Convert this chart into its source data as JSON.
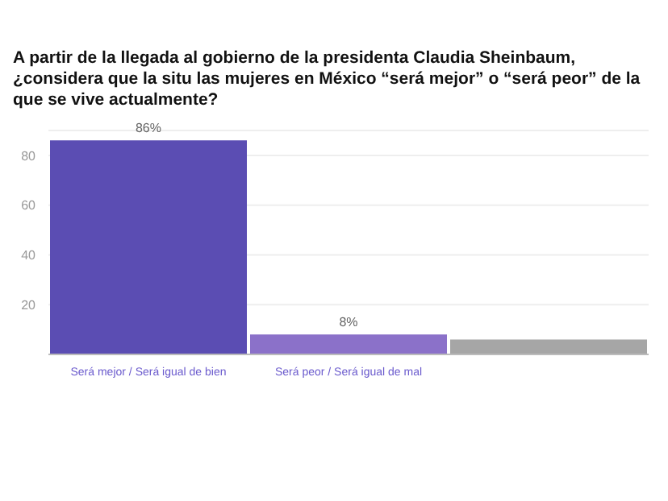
{
  "chart_data": {
    "type": "bar",
    "title": "A partir de la llegada al gobierno de la presidenta Claudia Sheinbaum, ¿considera que la situ las mujeres en México “será mejor” o “será peor” de la que se vive actualmente?",
    "categories": [
      "Será mejor / Será igual de bien",
      "Será peor / Será igual de mal",
      null
    ],
    "values": [
      86,
      8,
      6
    ],
    "colors": [
      "#5b4db3",
      "#8b71c9",
      "#a6a6a6"
    ],
    "value_labels": [
      "86%",
      "8%",
      null
    ],
    "ylim": [
      0,
      90
    ],
    "yticks": [
      20,
      40,
      60,
      80
    ],
    "grid": "y"
  }
}
